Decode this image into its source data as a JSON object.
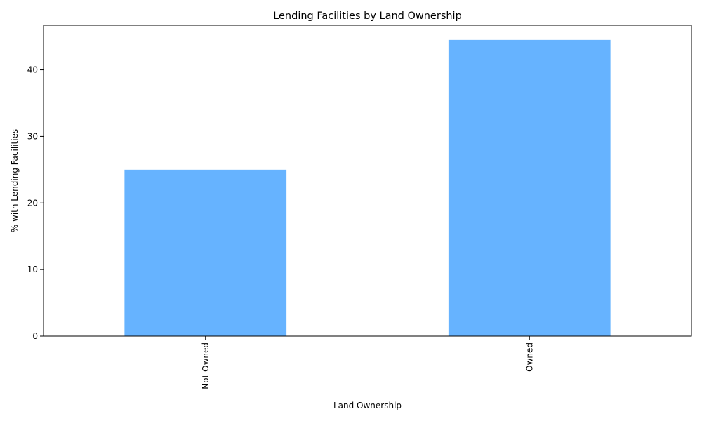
{
  "chart_data": {
    "type": "bar",
    "title": "Lending Facilities by Land Ownership",
    "xlabel": "Land Ownership",
    "ylabel": "% with Lending Facilities",
    "categories": [
      "Not Owned",
      "Owned"
    ],
    "values": [
      25.0,
      44.5
    ],
    "yticks": [
      0,
      10,
      20,
      30,
      40
    ],
    "ylim": [
      0,
      46.7
    ],
    "bar_color": "#66b3ff",
    "grid": false,
    "legend": "none"
  }
}
